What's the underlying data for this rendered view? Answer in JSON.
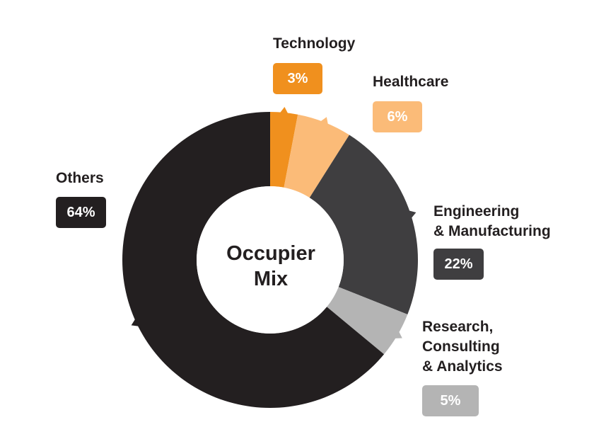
{
  "chart_data": {
    "type": "pie",
    "title": "Occupier Mix",
    "title_lines": [
      "Occupier",
      "Mix"
    ],
    "slices": [
      {
        "label": "Technology",
        "label_lines": [
          "Technology"
        ],
        "value": 3,
        "display": "3%",
        "color": "#f0901e"
      },
      {
        "label": "Healthcare",
        "label_lines": [
          "Healthcare"
        ],
        "value": 6,
        "display": "6%",
        "color": "#fbbb78"
      },
      {
        "label": "Engineering & Manufacturing",
        "label_lines": [
          "Engineering",
          "& Manufacturing"
        ],
        "value": 22,
        "display": "22%",
        "color": "#3f3e40"
      },
      {
        "label": "Research, Consulting & Analytics",
        "label_lines": [
          "Research,",
          "Consulting",
          "& Analytics"
        ],
        "value": 5,
        "display": "5%",
        "color": "#b4b4b4"
      },
      {
        "label": "Others",
        "label_lines": [
          "Others"
        ],
        "value": 64,
        "display": "64%",
        "color": "#231f20"
      }
    ],
    "donut": true,
    "legend": "none"
  }
}
